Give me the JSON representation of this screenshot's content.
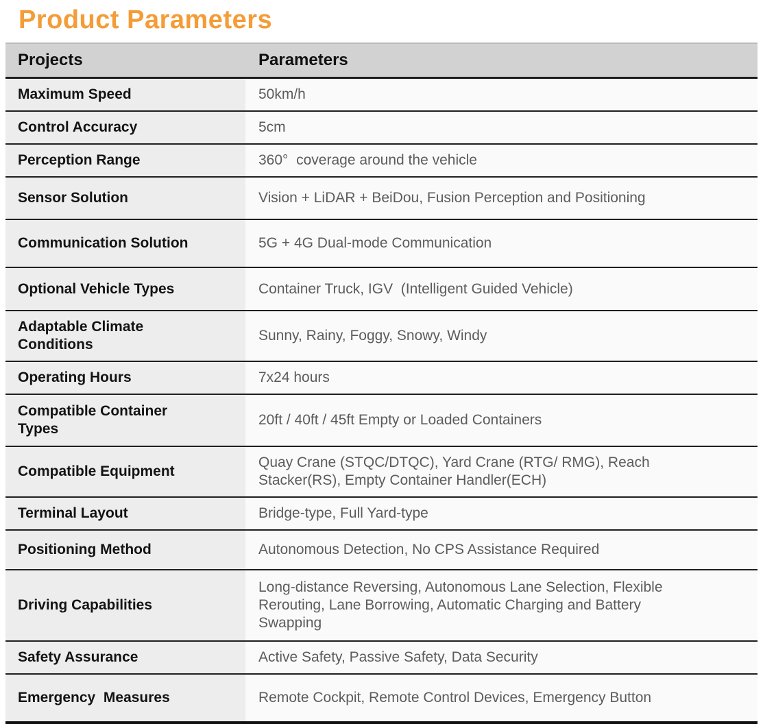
{
  "page": {
    "title": "Product Parameters"
  },
  "colors": {
    "accent_orange": "#F49C38",
    "header_bg": "#d2d2d2",
    "label_bg": "#ededed",
    "value_bg": "#fafafa",
    "divider": "#1f1f1f",
    "label_text": "#131313",
    "value_text": "#5c5c5c"
  },
  "table": {
    "header": {
      "projects": "Projects",
      "parameters": "Parameters"
    },
    "rows": [
      {
        "label": "Maximum Speed",
        "value": "50km/h"
      },
      {
        "label": "Control Accuracy",
        "value": "5cm"
      },
      {
        "label": "Perception Range",
        "value": "360°  coverage around the vehicle"
      },
      {
        "label": "Sensor Solution",
        "value": "Vision + LiDAR + BeiDou, Fusion Perception and Positioning"
      },
      {
        "label": "Communication Solution",
        "value": "5G + 4G Dual-mode Communication"
      },
      {
        "label": "Optional Vehicle Types",
        "value": "Container Truck, IGV  (Intelligent Guided Vehicle)"
      },
      {
        "label": "Adaptable Climate Conditions",
        "value": "Sunny, Rainy, Foggy, Snowy, Windy"
      },
      {
        "label": "Operating Hours",
        "value": "7x24 hours"
      },
      {
        "label": "Compatible Container Types",
        "value": "20ft / 40ft / 45ft Empty or Loaded Containers"
      },
      {
        "label": "Compatible Equipment",
        "value": "Quay Crane (STQC/DTQC), Yard Crane (RTG/ RMG), Reach Stacker(RS), Empty Container Handler(ECH)"
      },
      {
        "label": "Terminal Layout",
        "value": "Bridge-type, Full Yard-type"
      },
      {
        "label": "Positioning Method",
        "value": "Autonomous Detection, No CPS Assistance Required"
      },
      {
        "label": "Driving Capabilities",
        "value": "Long-distance Reversing, Autonomous Lane Selection, Flexible Rerouting, Lane Borrowing, Automatic Charging and Battery Swapping"
      },
      {
        "label": "Safety Assurance",
        "value": "Active Safety, Passive Safety, Data Security"
      },
      {
        "label": "Emergency  Measures",
        "value": "Remote Cockpit, Remote Control Devices, Emergency Button"
      }
    ]
  }
}
